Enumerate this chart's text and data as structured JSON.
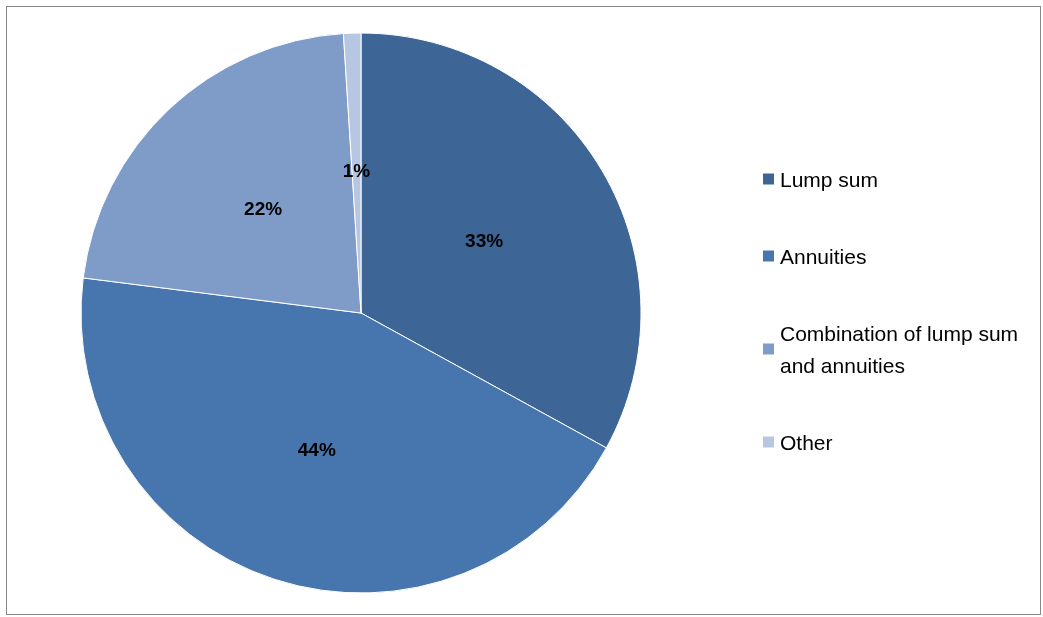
{
  "chart_data": {
    "type": "pie",
    "categories": [
      "Lump sum",
      "Annuities",
      "Combination of lump sum and annuities",
      "Other"
    ],
    "values": [
      33,
      44,
      22,
      1
    ],
    "colors": [
      "#3d6595",
      "#4776af",
      "#7f9cc8",
      "#b7c6e1"
    ],
    "value_labels": [
      "33%",
      "44%",
      "22%",
      "1%"
    ],
    "legend": "right"
  }
}
